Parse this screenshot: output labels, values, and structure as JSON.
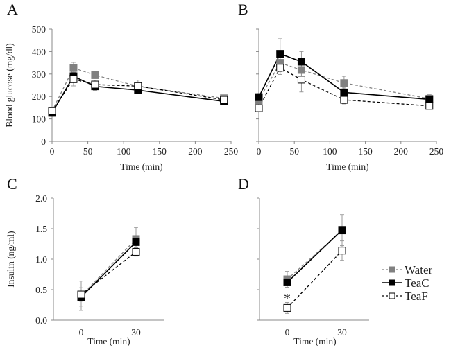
{
  "figure": {
    "series_styles": {
      "Water": {
        "color": "#808080",
        "marker": "filled-square",
        "line": "dashed",
        "marker_fill": "#808080"
      },
      "TeaC": {
        "color": "#000000",
        "marker": "filled-square",
        "line": "solid",
        "marker_fill": "#000000"
      },
      "TeaF": {
        "color": "#000000",
        "marker": "open-square",
        "line": "dashed",
        "marker_fill": "#ffffff"
      }
    },
    "legend": {
      "placement": "right-of-panel-D",
      "entries": [
        "Water",
        "TeaC",
        "TeaF"
      ]
    },
    "annotation_star": "*"
  },
  "chart_data": [
    {
      "panel": "A",
      "type": "line",
      "title": "A",
      "xlabel": "Time (min)",
      "ylabel": "Blood glucose (mg/dl)",
      "x": [
        0,
        30,
        60,
        120,
        240
      ],
      "xlim": [
        0,
        250
      ],
      "ylim": [
        0,
        500
      ],
      "xticks": [
        "0",
        "50",
        "100",
        "150",
        "200",
        "250"
      ],
      "xtick_values": [
        0,
        50,
        100,
        150,
        200,
        250
      ],
      "yticks": [
        "0",
        "100",
        "200",
        "300",
        "400",
        "500"
      ],
      "ytick_values": [
        0,
        100,
        200,
        300,
        400,
        500
      ],
      "grid": false,
      "series": [
        {
          "name": "Water",
          "values": [
            135,
            327,
            295,
            245,
            192
          ],
          "errors": [
            10,
            25,
            12,
            28,
            10
          ]
        },
        {
          "name": "TeaC",
          "values": [
            127,
            290,
            245,
            228,
            178
          ],
          "errors": [
            8,
            18,
            18,
            15,
            12
          ]
        },
        {
          "name": "TeaF",
          "values": [
            135,
            277,
            253,
            246,
            185
          ],
          "errors": [
            8,
            30,
            20,
            18,
            10
          ]
        }
      ]
    },
    {
      "panel": "B",
      "type": "line",
      "title": "B",
      "xlabel": "Time (min)",
      "ylabel": "",
      "x": [
        0,
        30,
        60,
        120,
        240
      ],
      "xlim": [
        0,
        250
      ],
      "ylim": [
        0,
        500
      ],
      "xticks": [
        "0",
        "50",
        "100",
        "150",
        "200",
        "250"
      ],
      "xtick_values": [
        0,
        50,
        100,
        150,
        200,
        250
      ],
      "yticks": [],
      "ytick_values": [
        0,
        100,
        200,
        300,
        400,
        500
      ],
      "grid": false,
      "series": [
        {
          "name": "Water",
          "values": [
            183,
            350,
            318,
            260,
            190
          ],
          "errors": [
            30,
            40,
            40,
            30,
            18
          ]
        },
        {
          "name": "TeaC",
          "values": [
            197,
            390,
            355,
            218,
            187
          ],
          "errors": [
            15,
            67,
            45,
            20,
            15
          ]
        },
        {
          "name": "TeaF",
          "values": [
            148,
            328,
            275,
            185,
            158
          ],
          "errors": [
            12,
            30,
            55,
            18,
            8
          ]
        }
      ]
    },
    {
      "panel": "C",
      "type": "line",
      "title": "C",
      "xlabel": "Time (min)",
      "ylabel": "Insulin (ng/ml)",
      "x": [
        0,
        30
      ],
      "x_categories": [
        "0",
        "30"
      ],
      "ylim": [
        0,
        2.0
      ],
      "yticks": [
        "0.0",
        "0.5",
        "1.0",
        "1.5",
        "2.0"
      ],
      "ytick_values": [
        0,
        0.5,
        1.0,
        1.5,
        2.0
      ],
      "grid": false,
      "series": [
        {
          "name": "Water",
          "values": [
            0.4,
            1.33
          ],
          "errors": [
            0.24,
            0.19
          ]
        },
        {
          "name": "TeaC",
          "values": [
            0.38,
            1.28
          ],
          "errors": [
            0.15,
            0.1
          ]
        },
        {
          "name": "TeaF",
          "values": [
            0.42,
            1.12
          ],
          "errors": [
            0.11,
            0.07
          ]
        }
      ]
    },
    {
      "panel": "D",
      "type": "line",
      "title": "D",
      "xlabel": "Time (min)",
      "ylabel": "",
      "x": [
        0,
        30
      ],
      "x_categories": [
        "0",
        "30"
      ],
      "ylim": [
        0,
        2.0
      ],
      "yticks": [],
      "ytick_values": [
        0,
        0.5,
        1.0,
        1.5,
        2.0
      ],
      "grid": false,
      "annotations": [
        {
          "text": "*",
          "x": 0,
          "y": 0.42,
          "note": "significant difference at t=0"
        }
      ],
      "series": [
        {
          "name": "Water",
          "values": [
            0.67,
            1.47
          ],
          "errors": [
            0.13,
            0.25
          ]
        },
        {
          "name": "TeaC",
          "values": [
            0.62,
            1.48
          ],
          "errors": [
            0.08,
            0.25
          ]
        },
        {
          "name": "TeaF",
          "values": [
            0.2,
            1.14
          ],
          "errors": [
            0.09,
            0.16
          ]
        }
      ]
    }
  ]
}
